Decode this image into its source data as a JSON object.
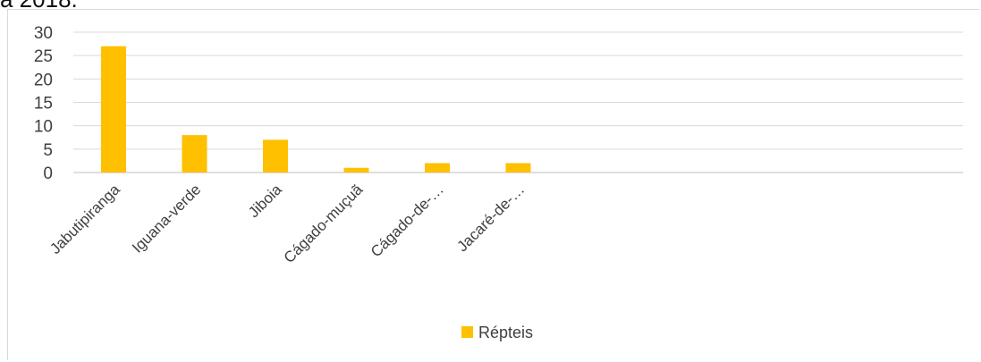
{
  "caption": "a 2018.",
  "chart_data": {
    "type": "bar",
    "categories": [
      "Jabutipiranga",
      "Iguana-verde",
      "Jiboia",
      "Cágado-muçuã",
      "Cágado-de-…",
      "Jacaré-de-…"
    ],
    "series": [
      {
        "name": "Répteis",
        "values": [
          27,
          8,
          7,
          1,
          2,
          2
        ],
        "color": "#FFC000"
      }
    ],
    "ylim": [
      0,
      30
    ],
    "yticks": [
      0,
      5,
      10,
      15,
      20,
      25,
      30
    ],
    "grid": true,
    "legend": "bottom"
  }
}
